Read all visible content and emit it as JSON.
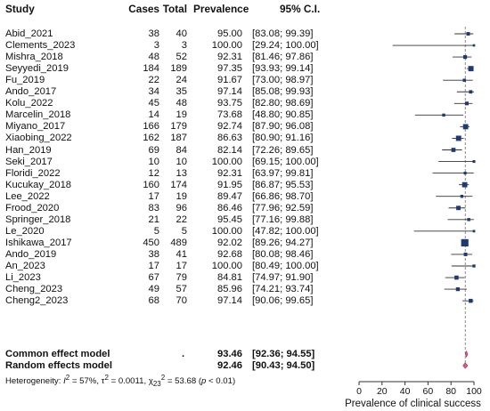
{
  "header": {
    "study": "Study",
    "cases": "Cases",
    "total": "Total",
    "prevalence": "Prevalence",
    "ci": "95% C.I."
  },
  "rows": [
    {
      "study": "Abid_2021",
      "cases": "38",
      "total": "40",
      "prev": "95.00",
      "ci": "[83.08; 99.39]"
    },
    {
      "study": "Clements_2023",
      "cases": "3",
      "total": "3",
      "prev": "100.00",
      "ci": "[29.24; 100.00]"
    },
    {
      "study": "Mishra_2018",
      "cases": "48",
      "total": "52",
      "prev": "92.31",
      "ci": "[81.46; 97.86]"
    },
    {
      "study": "Seyyedi_2019",
      "cases": "184",
      "total": "189",
      "prev": "97.35",
      "ci": "[93.93; 99.14]"
    },
    {
      "study": "Fu_2019",
      "cases": "22",
      "total": "24",
      "prev": "91.67",
      "ci": "[73.00; 98.97]"
    },
    {
      "study": "Ando_2017",
      "cases": "34",
      "total": "35",
      "prev": "97.14",
      "ci": "[85.08; 99.93]"
    },
    {
      "study": "Kolu_2022",
      "cases": "45",
      "total": "48",
      "prev": "93.75",
      "ci": "[82.80; 98.69]"
    },
    {
      "study": "Marcelin_2018",
      "cases": "14",
      "total": "19",
      "prev": "73.68",
      "ci": "[48.80; 90.85]"
    },
    {
      "study": "Miyano_2017",
      "cases": "166",
      "total": "179",
      "prev": "92.74",
      "ci": "[87.90; 96.08]"
    },
    {
      "study": "Xiaobing_2022",
      "cases": "162",
      "total": "187",
      "prev": "86.63",
      "ci": "[80.90; 91.16]"
    },
    {
      "study": "Han_2019",
      "cases": "69",
      "total": "84",
      "prev": "82.14",
      "ci": "[72.26; 89.65]"
    },
    {
      "study": "Seki_2017",
      "cases": "10",
      "total": "10",
      "prev": "100.00",
      "ci": "[69.15; 100.00]"
    },
    {
      "study": "Floridi_2022",
      "cases": "12",
      "total": "13",
      "prev": "92.31",
      "ci": "[63.97; 99.81]"
    },
    {
      "study": "Kucukay_2018",
      "cases": "160",
      "total": "174",
      "prev": "91.95",
      "ci": "[86.87; 95.53]"
    },
    {
      "study": "Lee_2022",
      "cases": "17",
      "total": "19",
      "prev": "89.47",
      "ci": "[66.86; 98.70]"
    },
    {
      "study": "Frood_2020",
      "cases": "83",
      "total": "96",
      "prev": "86.46",
      "ci": "[77.96; 92.59]"
    },
    {
      "study": "Springer_2018",
      "cases": "21",
      "total": "22",
      "prev": "95.45",
      "ci": "[77.16; 99.88]"
    },
    {
      "study": "Le_2020",
      "cases": "5",
      "total": "5",
      "prev": "100.00",
      "ci": "[47.82; 100.00]"
    },
    {
      "study": "Ishikawa_2017",
      "cases": "450",
      "total": "489",
      "prev": "92.02",
      "ci": "[89.26; 94.27]"
    },
    {
      "study": "Ando_2019",
      "cases": "38",
      "total": "41",
      "prev": "92.68",
      "ci": "[80.08; 98.46]"
    },
    {
      "study": "An_2023",
      "cases": "17",
      "total": "17",
      "prev": "100.00",
      "ci": "[80.49; 100.00]"
    },
    {
      "study": "Li_2023",
      "cases": "67",
      "total": "79",
      "prev": "84.81",
      "ci": "[74.97; 91.90]"
    },
    {
      "study": "Cheng_2023",
      "cases": "49",
      "total": "57",
      "prev": "85.96",
      "ci": "[74.21; 93.74]"
    },
    {
      "study": "Cheng2_2023",
      "cases": "68",
      "total": "70",
      "prev": "97.14",
      "ci": "[90.06; 99.65]"
    }
  ],
  "summary": [
    {
      "label": "Common effect model",
      "dot": ".",
      "prev": "93.46",
      "ci": "[92.36; 94.55]"
    },
    {
      "label": "Random effects model",
      "dot": "",
      "prev": "92.46",
      "ci": "[90.43; 94.50]"
    }
  ],
  "heterogeneity": {
    "prefix": "Heterogeneity: ",
    "i2_label": "I",
    "i2_value": " = 57%, ",
    "tau_label": "τ",
    "tau_value": " = 0.0011, ",
    "chi_label": "χ",
    "chi_sub": "23",
    "chi_value": " = 53.68 (",
    "p_label": "p",
    "p_value": " < 0.01)"
  },
  "chart_data": {
    "type": "forest",
    "xlabel": "Prevalence of clinical success",
    "xlim": [
      0,
      100
    ],
    "xticks": [
      "0",
      "20",
      "40",
      "60",
      "80",
      "100"
    ],
    "xtick_values": [
      0,
      20,
      40,
      60,
      80,
      100
    ],
    "reference_line": 92.46,
    "square_color": "#1f3a73",
    "diamond_color": "#d9607a",
    "studies": [
      {
        "name": "Abid_2021",
        "est": 95.0,
        "lo": 83.08,
        "hi": 99.39,
        "n": 40
      },
      {
        "name": "Clements_2023",
        "est": 100.0,
        "lo": 29.24,
        "hi": 100.0,
        "n": 3
      },
      {
        "name": "Mishra_2018",
        "est": 92.31,
        "lo": 81.46,
        "hi": 97.86,
        "n": 52
      },
      {
        "name": "Seyyedi_2019",
        "est": 97.35,
        "lo": 93.93,
        "hi": 99.14,
        "n": 189
      },
      {
        "name": "Fu_2019",
        "est": 91.67,
        "lo": 73.0,
        "hi": 98.97,
        "n": 24
      },
      {
        "name": "Ando_2017",
        "est": 97.14,
        "lo": 85.08,
        "hi": 99.93,
        "n": 35
      },
      {
        "name": "Kolu_2022",
        "est": 93.75,
        "lo": 82.8,
        "hi": 98.69,
        "n": 48
      },
      {
        "name": "Marcelin_2018",
        "est": 73.68,
        "lo": 48.8,
        "hi": 90.85,
        "n": 19
      },
      {
        "name": "Miyano_2017",
        "est": 92.74,
        "lo": 87.9,
        "hi": 96.08,
        "n": 179
      },
      {
        "name": "Xiaobing_2022",
        "est": 86.63,
        "lo": 80.9,
        "hi": 91.16,
        "n": 187
      },
      {
        "name": "Han_2019",
        "est": 82.14,
        "lo": 72.26,
        "hi": 89.65,
        "n": 84
      },
      {
        "name": "Seki_2017",
        "est": 100.0,
        "lo": 69.15,
        "hi": 100.0,
        "n": 10
      },
      {
        "name": "Floridi_2022",
        "est": 92.31,
        "lo": 63.97,
        "hi": 99.81,
        "n": 13
      },
      {
        "name": "Kucukay_2018",
        "est": 91.95,
        "lo": 86.87,
        "hi": 95.53,
        "n": 174
      },
      {
        "name": "Lee_2022",
        "est": 89.47,
        "lo": 66.86,
        "hi": 98.7,
        "n": 19
      },
      {
        "name": "Frood_2020",
        "est": 86.46,
        "lo": 77.96,
        "hi": 92.59,
        "n": 96
      },
      {
        "name": "Springer_2018",
        "est": 95.45,
        "lo": 77.16,
        "hi": 99.88,
        "n": 22
      },
      {
        "name": "Le_2020",
        "est": 100.0,
        "lo": 47.82,
        "hi": 100.0,
        "n": 5
      },
      {
        "name": "Ishikawa_2017",
        "est": 92.02,
        "lo": 89.26,
        "hi": 94.27,
        "n": 489
      },
      {
        "name": "Ando_2019",
        "est": 92.68,
        "lo": 80.08,
        "hi": 98.46,
        "n": 41
      },
      {
        "name": "An_2023",
        "est": 100.0,
        "lo": 80.49,
        "hi": 100.0,
        "n": 17
      },
      {
        "name": "Li_2023",
        "est": 84.81,
        "lo": 74.97,
        "hi": 91.9,
        "n": 79
      },
      {
        "name": "Cheng_2023",
        "est": 85.96,
        "lo": 74.21,
        "hi": 93.74,
        "n": 57
      },
      {
        "name": "Cheng2_2023",
        "est": 97.14,
        "lo": 90.06,
        "hi": 99.65,
        "n": 70
      }
    ],
    "summaries": [
      {
        "name": "Common effect model",
        "est": 93.46,
        "lo": 92.36,
        "hi": 94.55
      },
      {
        "name": "Random effects model",
        "est": 92.46,
        "lo": 90.43,
        "hi": 94.5
      }
    ]
  }
}
